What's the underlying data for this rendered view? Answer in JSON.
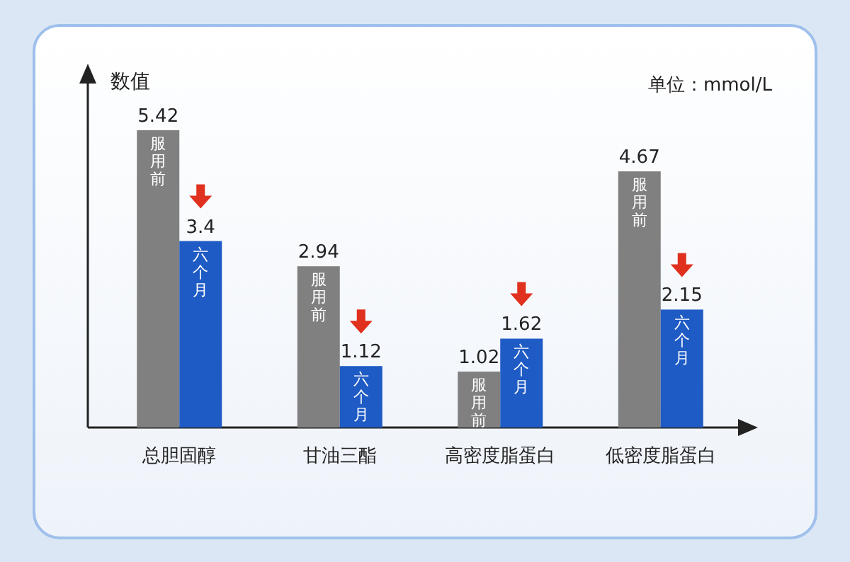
{
  "chart_data": {
    "type": "bar",
    "ylabel": "数值",
    "annotations": [
      "单位：mmol/L"
    ],
    "categories": [
      "总胆固醇",
      "甘油三酯",
      "高密度脂蛋白",
      "低密度脂蛋白"
    ],
    "series": [
      {
        "name": "服用前",
        "color": "#808080",
        "values": [
          5.42,
          2.94,
          1.02,
          4.67
        ]
      },
      {
        "name": "六个月",
        "color": "#1f5bc4",
        "values": [
          3.4,
          1.12,
          1.62,
          2.15
        ]
      }
    ],
    "data_labels": true,
    "legend": false
  }
}
